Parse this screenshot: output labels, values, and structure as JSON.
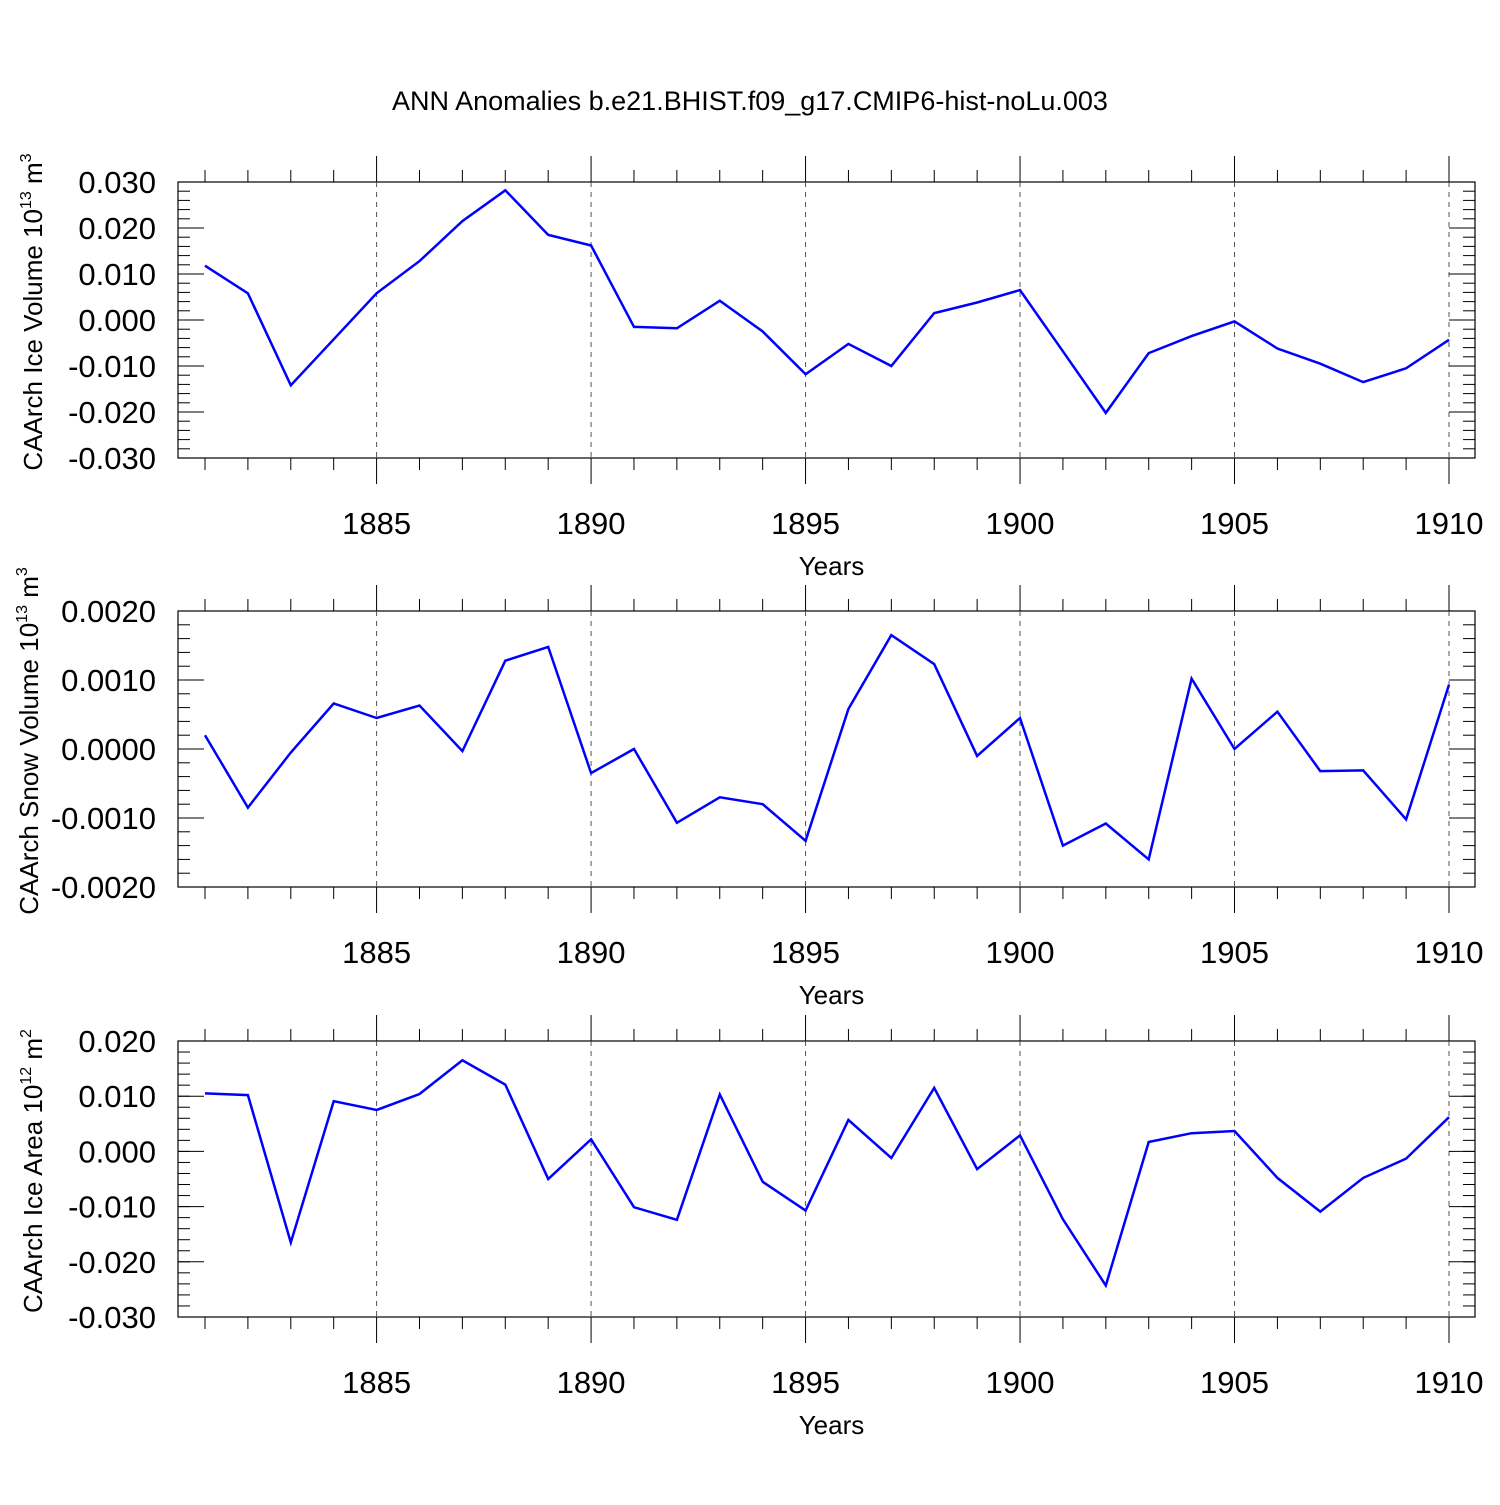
{
  "title": "ANN Anomalies b.e21.BHIST.f09_g17.CMIP6-hist-noLu.003",
  "colors": {
    "line": "#0000ff",
    "axis": "#000000",
    "grid": "#555555"
  },
  "chart_data": [
    {
      "type": "line",
      "ylabel": "CAArch Ice Volume 10",
      "ylabel_exp": "13",
      "ylabel_unit": " m",
      "ylabel_unit_exp": "3",
      "xlabel": "Years",
      "xlim": [
        1881,
        1910
      ],
      "ylim": [
        -0.03,
        0.03
      ],
      "yticks": [
        0.03,
        0.02,
        0.01,
        0.0,
        -0.01,
        -0.02,
        -0.03
      ],
      "ytick_labels": [
        "0.030",
        "0.020",
        "0.010",
        "0.000",
        "-0.010",
        "-0.020",
        "-0.030"
      ],
      "yminor_step": 0.002,
      "xticks": [
        1885,
        1890,
        1895,
        1900,
        1905,
        1910
      ],
      "xtick_labels": [
        "1885",
        "1890",
        "1895",
        "1900",
        "1905",
        "1910"
      ],
      "grid": "vertical dashed at major x ticks",
      "x": [
        1881,
        1882,
        1883,
        1884,
        1885,
        1886,
        1887,
        1888,
        1889,
        1890,
        1891,
        1892,
        1893,
        1894,
        1895,
        1896,
        1897,
        1898,
        1899,
        1900,
        1901,
        1902,
        1903,
        1904,
        1905,
        1906,
        1907,
        1908,
        1909,
        1910
      ],
      "values": [
        0.0118,
        0.0058,
        -0.0142,
        -0.0042,
        0.0058,
        0.0128,
        0.0215,
        0.0282,
        0.0185,
        0.0162,
        -0.0015,
        -0.0018,
        0.0042,
        -0.0025,
        -0.0118,
        -0.0052,
        -0.01,
        0.0015,
        0.0038,
        0.0065,
        -0.0068,
        -0.0202,
        -0.0072,
        -0.0035,
        -0.0003,
        -0.0062,
        -0.0095,
        -0.0135,
        -0.0105,
        -0.0043
      ]
    },
    {
      "type": "line",
      "ylabel": "CAArch Snow Volume 10",
      "ylabel_exp": "13",
      "ylabel_unit": " m",
      "ylabel_unit_exp": "3",
      "xlabel": "Years",
      "xlim": [
        1881,
        1910
      ],
      "ylim": [
        -0.002,
        0.002
      ],
      "yticks": [
        0.002,
        0.001,
        0.0,
        -0.001,
        -0.002
      ],
      "ytick_labels": [
        "0.0020",
        "0.0010",
        "0.0000",
        "-0.0010",
        "-0.0020"
      ],
      "yminor_step": 0.0002,
      "xticks": [
        1885,
        1890,
        1895,
        1900,
        1905,
        1910
      ],
      "xtick_labels": [
        "1885",
        "1890",
        "1895",
        "1900",
        "1905",
        "1910"
      ],
      "grid": "vertical dashed at major x ticks",
      "x": [
        1881,
        1882,
        1883,
        1884,
        1885,
        1886,
        1887,
        1888,
        1889,
        1890,
        1891,
        1892,
        1893,
        1894,
        1895,
        1896,
        1897,
        1898,
        1899,
        1900,
        1901,
        1902,
        1903,
        1904,
        1905,
        1906,
        1907,
        1908,
        1909,
        1910
      ],
      "values": [
        0.0002,
        -0.00085,
        -5e-05,
        0.00066,
        0.00045,
        0.00063,
        -3e-05,
        0.00128,
        0.00148,
        -0.00035,
        0.0,
        -0.00107,
        -0.0007,
        -0.0008,
        -0.00133,
        0.00058,
        0.00165,
        0.00123,
        -0.0001,
        0.00045,
        -0.0014,
        -0.00108,
        -0.0016,
        0.00102,
        0.0,
        0.00054,
        -0.00032,
        -0.00031,
        -0.00102,
        0.00093
      ]
    },
    {
      "type": "line",
      "ylabel": "CAArch Ice Area 10",
      "ylabel_exp": "12",
      "ylabel_unit": " m",
      "ylabel_unit_exp": "2",
      "xlabel": "Years",
      "xlim": [
        1881,
        1910
      ],
      "ylim": [
        -0.03,
        0.02
      ],
      "yticks": [
        0.02,
        0.01,
        0.0,
        -0.01,
        -0.02,
        -0.03
      ],
      "ytick_labels": [
        "0.020",
        "0.010",
        "0.000",
        "-0.010",
        "-0.020",
        "-0.030"
      ],
      "yminor_step": 0.002,
      "xticks": [
        1885,
        1890,
        1895,
        1900,
        1905,
        1910
      ],
      "xtick_labels": [
        "1885",
        "1890",
        "1895",
        "1900",
        "1905",
        "1910"
      ],
      "grid": "vertical dashed at major x ticks",
      "x": [
        1881,
        1882,
        1883,
        1884,
        1885,
        1886,
        1887,
        1888,
        1889,
        1890,
        1891,
        1892,
        1893,
        1894,
        1895,
        1896,
        1897,
        1898,
        1899,
        1900,
        1901,
        1902,
        1903,
        1904,
        1905,
        1906,
        1907,
        1908,
        1909,
        1910
      ],
      "values": [
        0.0105,
        0.0102,
        -0.0165,
        0.0091,
        0.0075,
        0.0104,
        0.0165,
        0.0121,
        -0.005,
        0.0022,
        -0.0101,
        -0.0124,
        0.0103,
        -0.0055,
        -0.0107,
        0.0057,
        -0.0012,
        0.0115,
        -0.0032,
        0.0029,
        -0.0123,
        -0.0243,
        0.0017,
        0.0033,
        0.0037,
        -0.0048,
        -0.0109,
        -0.0048,
        -0.0013,
        0.0062
      ]
    }
  ]
}
